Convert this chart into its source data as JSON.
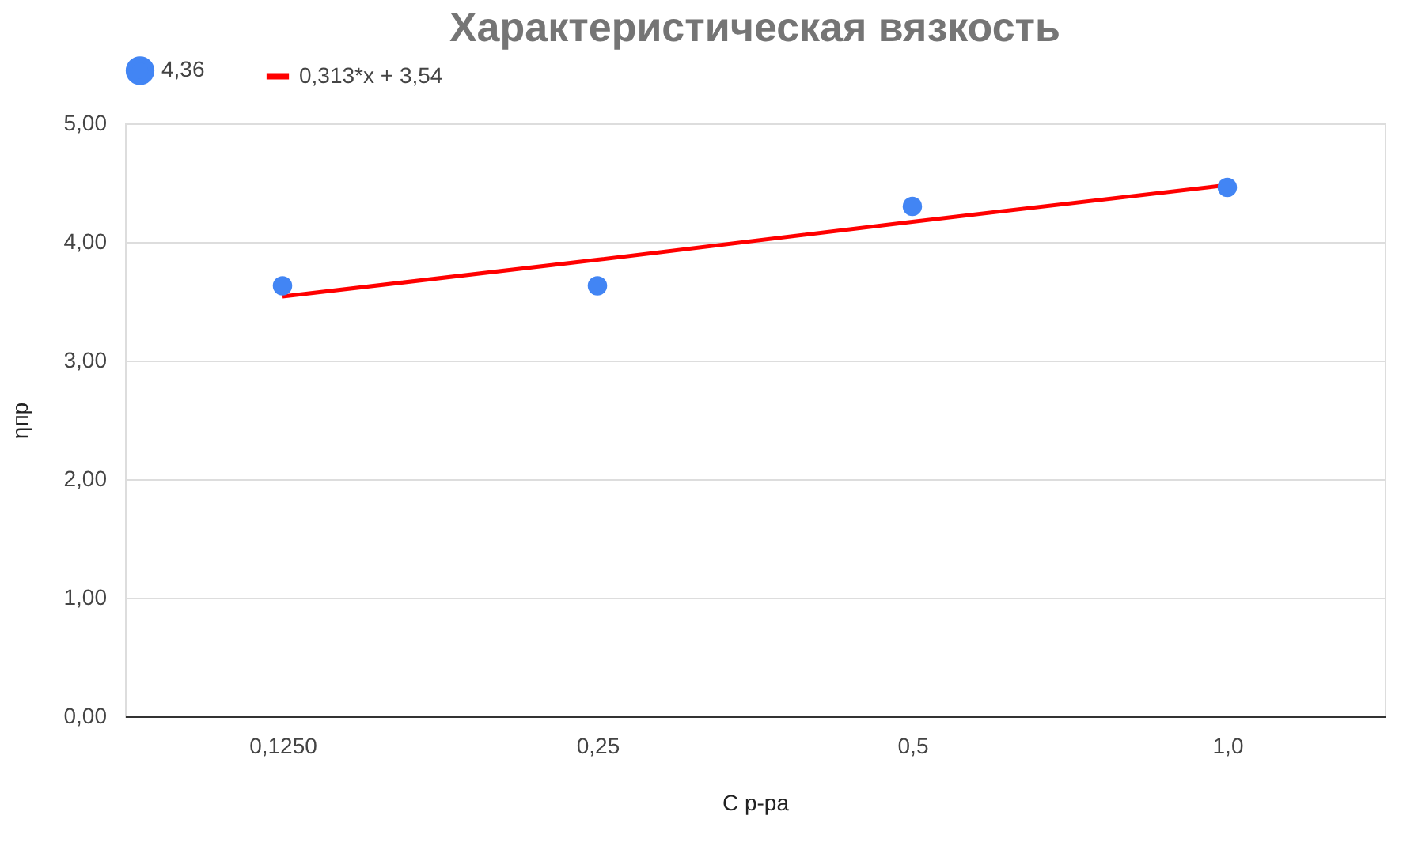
{
  "chart_data": {
    "type": "scatter",
    "title": "Характеристическая вязкость",
    "xlabel": "C р-ра",
    "ylabel": "ηпр",
    "categories": [
      "0,1250",
      "0,25",
      "0,5",
      "1,0"
    ],
    "series": [
      {
        "name": "4,36",
        "color": "#4285f4",
        "values": [
          3.63,
          3.63,
          4.3,
          4.46
        ],
        "marker": "circle"
      },
      {
        "name": "0,313*x + 3,54",
        "type": "line",
        "color": "#ff0000",
        "values": [
          3.54,
          3.85,
          4.17,
          4.48
        ]
      }
    ],
    "ylim": [
      0,
      5
    ],
    "yticks": [
      {
        "value": 0,
        "label": "0,00"
      },
      {
        "value": 1,
        "label": "1,00"
      },
      {
        "value": 2,
        "label": "2,00"
      },
      {
        "value": 3,
        "label": "3,00"
      },
      {
        "value": 4,
        "label": "4,00"
      },
      {
        "value": 5,
        "label": "5,00"
      }
    ],
    "grid": "y",
    "legend": "top"
  }
}
